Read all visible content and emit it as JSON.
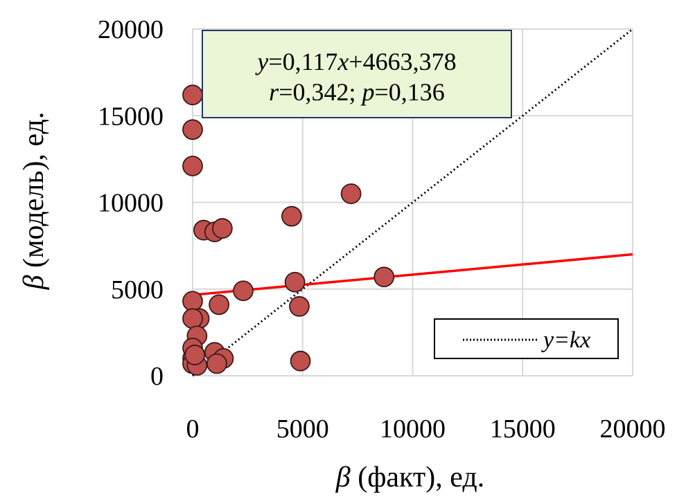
{
  "chart_data": {
    "type": "scatter",
    "xlabel": {
      "symbol": "β",
      "rest": " (факт), ед."
    },
    "ylabel": {
      "symbol": "β",
      "rest": " (модель), ед."
    },
    "xlim": [
      0,
      20000
    ],
    "ylim": [
      0,
      20000
    ],
    "xticks": [
      "0",
      "5000",
      "10000",
      "15000",
      "20000"
    ],
    "yticks": [
      "0",
      "5000",
      "10000",
      "15000",
      "20000"
    ],
    "grid": true,
    "points": [
      {
        "x": 0,
        "y": 16200
      },
      {
        "x": 0,
        "y": 14200
      },
      {
        "x": 0,
        "y": 12100
      },
      {
        "x": 7200,
        "y": 10500
      },
      {
        "x": 4500,
        "y": 9200
      },
      {
        "x": 500,
        "y": 8400
      },
      {
        "x": 1000,
        "y": 8300
      },
      {
        "x": 1350,
        "y": 8500
      },
      {
        "x": 8700,
        "y": 5700
      },
      {
        "x": 4650,
        "y": 5400
      },
      {
        "x": 2300,
        "y": 4900
      },
      {
        "x": 1200,
        "y": 4100
      },
      {
        "x": 4850,
        "y": 4000
      },
      {
        "x": 0,
        "y": 4300
      },
      {
        "x": 300,
        "y": 3300
      },
      {
        "x": 0,
        "y": 3300
      },
      {
        "x": 200,
        "y": 2300
      },
      {
        "x": 0,
        "y": 1600
      },
      {
        "x": 1000,
        "y": 1350
      },
      {
        "x": 1400,
        "y": 1000
      },
      {
        "x": 1100,
        "y": 700
      },
      {
        "x": 4900,
        "y": 850
      },
      {
        "x": 0,
        "y": 1000
      },
      {
        "x": 0,
        "y": 700
      },
      {
        "x": 200,
        "y": 600
      },
      {
        "x": 100,
        "y": 1200
      }
    ],
    "marker_color": "#c0504d",
    "marker_edge": "#3a1a1a",
    "regression": {
      "slope": 0.117,
      "intercept": 4663.378,
      "color": "#ff0000",
      "equation": {
        "y": "y",
        "eq": "=0,117",
        "x": "x",
        "rest": "+4663,378"
      },
      "stats": {
        "r": "r",
        "r_val": "=0,342; ",
        "p": "p",
        "p_val": "=0,136"
      }
    },
    "identity_line": {
      "label": "y=kx",
      "style": "dotted"
    },
    "annotation_box_color": "#ebf6d6",
    "annotation_box_border": "#1f3864",
    "legend_position": "bottom-right"
  }
}
